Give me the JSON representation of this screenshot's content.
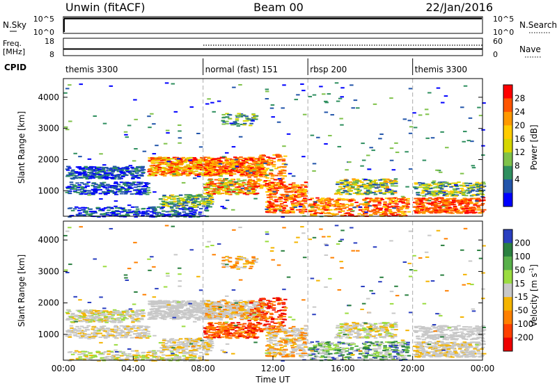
{
  "header": {
    "left_title": "Unwin (fitACF)",
    "center_title": "Beam 00",
    "right_title": "22/Jan/2016"
  },
  "top_panels": {
    "nsky_label": "N.Sky",
    "nsky_ticks": [
      "10^5",
      "10^0"
    ],
    "nsearch_ticks": [
      "10^5",
      "10^0"
    ],
    "nsearch_label": "N.Search",
    "freq_label_line1": "Freq.",
    "freq_label_line2": "[MHz]",
    "freq_ticks": [
      "18",
      "8"
    ],
    "nave_ticks": [
      "60",
      "0"
    ],
    "nave_label": "Nave",
    "cpid_label": "CPID",
    "cpid_segments": [
      {
        "label": "themis 3300",
        "start": 0,
        "end": 8
      },
      {
        "label": "normal (fast) 151",
        "start": 8,
        "end": 14
      },
      {
        "label": "rbsp 200",
        "start": 14,
        "end": 20
      },
      {
        "label": "themis 3300",
        "start": 20,
        "end": 24
      }
    ]
  },
  "power_colorbar": {
    "label": "Power [dB]",
    "ticks": [
      "28",
      "24",
      "20",
      "16",
      "12",
      "8",
      "4"
    ],
    "colors": [
      "#ff0000",
      "#ff5500",
      "#ff9900",
      "#ffcc00",
      "#d6d600",
      "#7fc24a",
      "#2f8f5f",
      "#2255aa",
      "#0000ff"
    ]
  },
  "velocity_colorbar": {
    "label": "Velocity [m s",
    "label_sup": "-1",
    "label_end": "]",
    "ticks": [
      "200",
      "100",
      "50",
      "15",
      "-15",
      "-50",
      "-100",
      "-200"
    ],
    "colors": [
      "#2a3fc0",
      "#2a8040",
      "#58b04a",
      "#9bdc40",
      "#c8c8c8",
      "#f4b400",
      "#ff8000",
      "#ff4000",
      "#ee0000"
    ]
  },
  "chart_data": [
    {
      "type": "heatmap",
      "title": "",
      "xlabel": "",
      "ylabel": "Slant Range [km]",
      "xlim": [
        0,
        24
      ],
      "ylim": [
        180,
        4600
      ],
      "yticks": [
        "4000",
        "3000",
        "2000",
        "1000"
      ],
      "variable": "Power [dB]",
      "mode_boundaries_hours": [
        8,
        14,
        20
      ]
    },
    {
      "type": "heatmap",
      "title": "",
      "xlabel": "Time UT",
      "ylabel": "Slant Range [km]",
      "xlim": [
        0,
        24
      ],
      "ylim": [
        180,
        4600
      ],
      "xticks": [
        "00:00",
        "04:00",
        "08:00",
        "12:00",
        "16:00",
        "20:00",
        "00:00"
      ],
      "yticks": [
        "4000",
        "3000",
        "2000",
        "1000"
      ],
      "variable": "Velocity [m s-1]",
      "mode_boundaries_hours": [
        8,
        14,
        20
      ]
    }
  ]
}
